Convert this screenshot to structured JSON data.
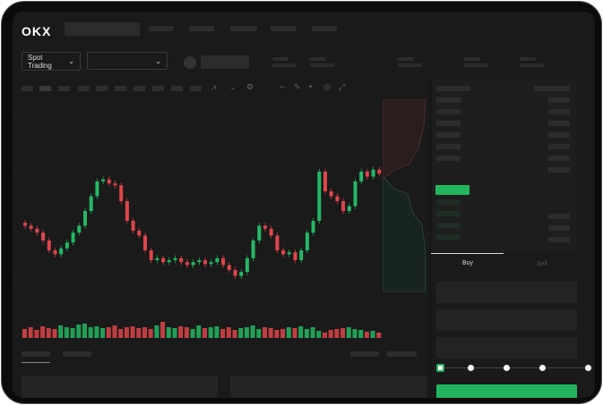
{
  "header": {
    "logo": "OKX"
  },
  "market": {
    "mode_label": "Spot Trading",
    "pair_value": ""
  },
  "trade": {
    "buy_label": "Buy",
    "sell_label": "Sell"
  },
  "colors": {
    "up": "#25b864",
    "down": "#e0454a",
    "accent": "#22b55e"
  },
  "chart_data": {
    "type": "candlestick",
    "closes": [
      95,
      92,
      88,
      80,
      70,
      66,
      72,
      78,
      88,
      95,
      110,
      125,
      140,
      142,
      138,
      136,
      120,
      100,
      90,
      85,
      70,
      60,
      62,
      58,
      60,
      62,
      58,
      55,
      58,
      60,
      56,
      58,
      62,
      55,
      50,
      44,
      48,
      62,
      80,
      95,
      92,
      85,
      70,
      66,
      68,
      60,
      70,
      88,
      100,
      150,
      130,
      125,
      120,
      110,
      115,
      140,
      150,
      145,
      152,
      148
    ],
    "volumes": [
      10,
      12,
      9,
      13,
      11,
      10,
      14,
      12,
      11,
      15,
      16,
      12,
      13,
      11,
      12,
      14,
      10,
      12,
      13,
      11,
      12,
      10,
      14,
      18,
      12,
      11,
      13,
      12,
      10,
      14,
      11,
      12,
      13,
      10,
      12,
      9,
      11,
      12,
      14,
      10,
      12,
      11,
      9,
      10,
      12,
      11,
      13,
      10,
      12,
      8,
      6,
      9,
      10,
      11,
      12,
      10,
      9,
      7,
      8,
      6
    ]
  }
}
